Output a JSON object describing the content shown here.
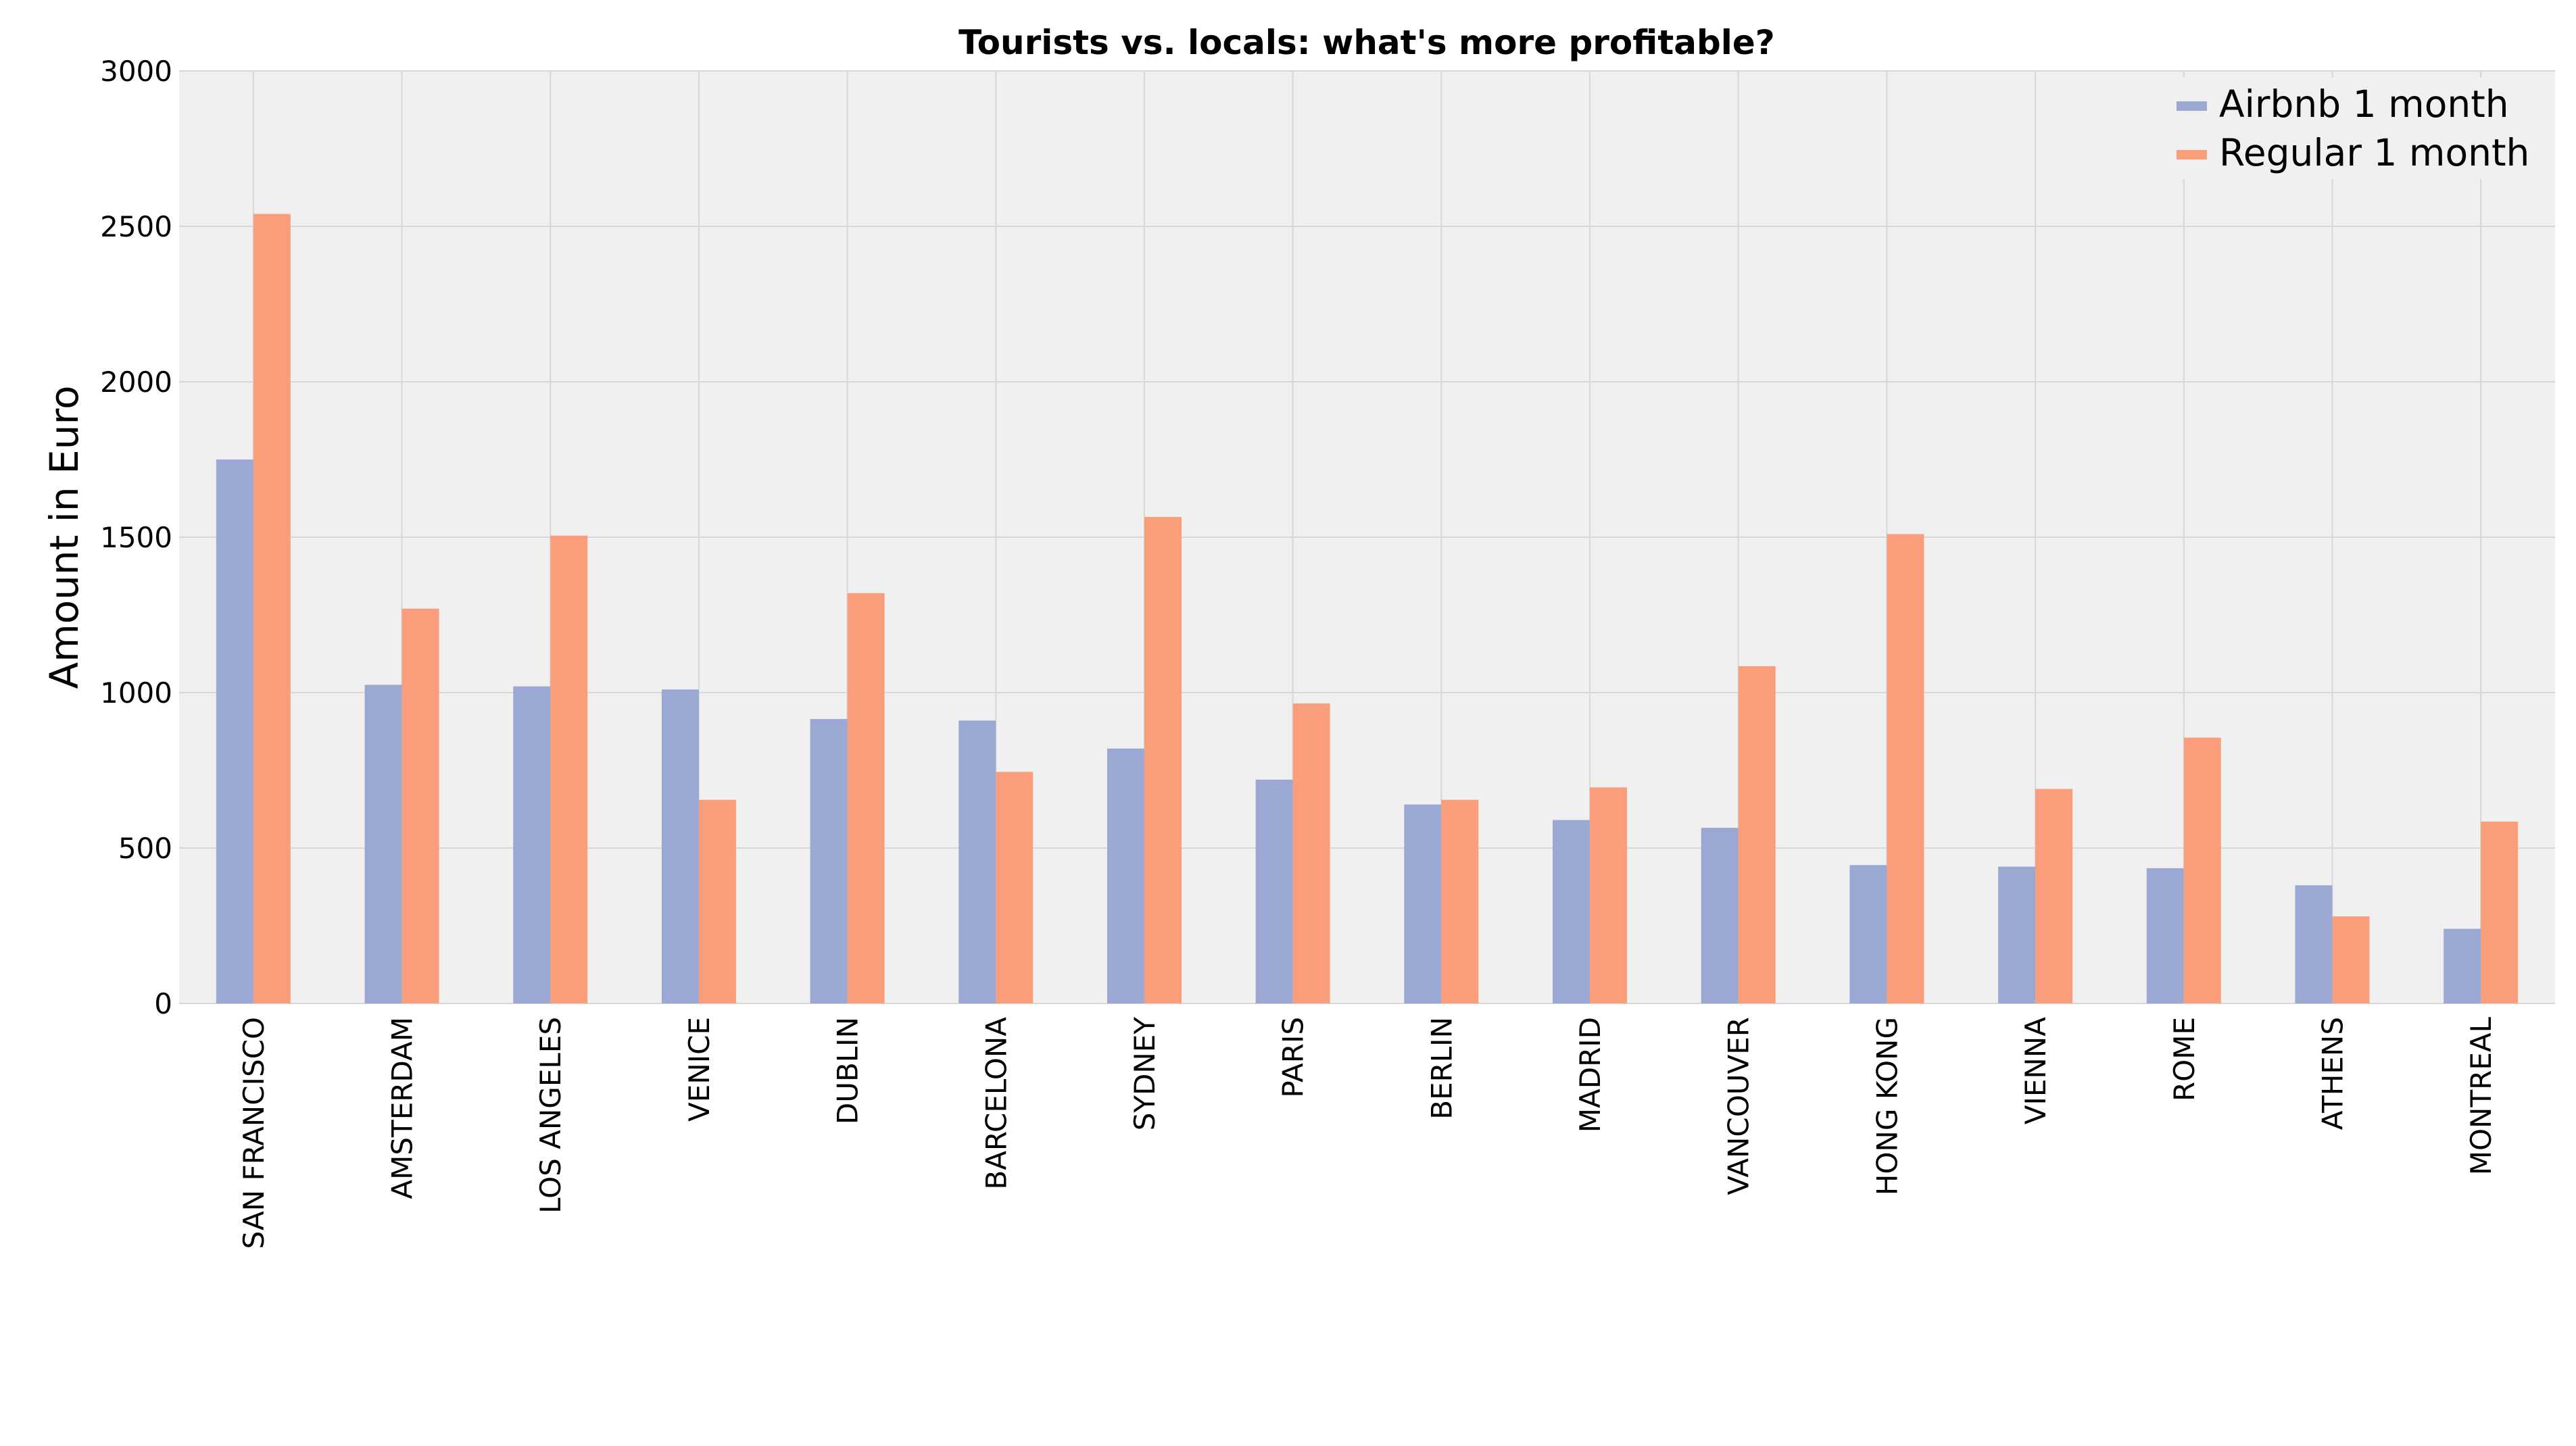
{
  "chart_data": {
    "type": "bar",
    "title": "Tourists vs. locals: what's more profitable?",
    "xlabel": "",
    "ylabel": "Amount in Euro",
    "ylim": [
      0,
      3000
    ],
    "yticks": [
      "0",
      "500",
      "1000",
      "1500",
      "2000",
      "2500",
      "3000"
    ],
    "grid": true,
    "legend_position": "top-right",
    "categories": [
      "SAN FRANCISCO",
      "AMSTERDAM",
      "LOS ANGELES",
      "VENICE",
      "DUBLIN",
      "BARCELONA",
      "SYDNEY",
      "PARIS",
      "BERLIN",
      "MADRID",
      "VANCOUVER",
      "HONG KONG",
      "VIENNA",
      "ROME",
      "ATHENS",
      "MONTREAL"
    ],
    "series": [
      {
        "name": "Airbnb 1 month",
        "color": "#9aa8d3",
        "values": [
          1750,
          1025,
          1020,
          1010,
          915,
          910,
          820,
          720,
          640,
          590,
          565,
          445,
          440,
          435,
          380,
          240
        ]
      },
      {
        "name": "Regular 1 month",
        "color": "#f99d7b",
        "values": [
          2540,
          1270,
          1505,
          655,
          1320,
          745,
          1565,
          965,
          655,
          695,
          1085,
          1510,
          690,
          855,
          280,
          585
        ]
      }
    ],
    "plot_background": "#f0f0f0",
    "grid_color": "#d7d7d7"
  }
}
